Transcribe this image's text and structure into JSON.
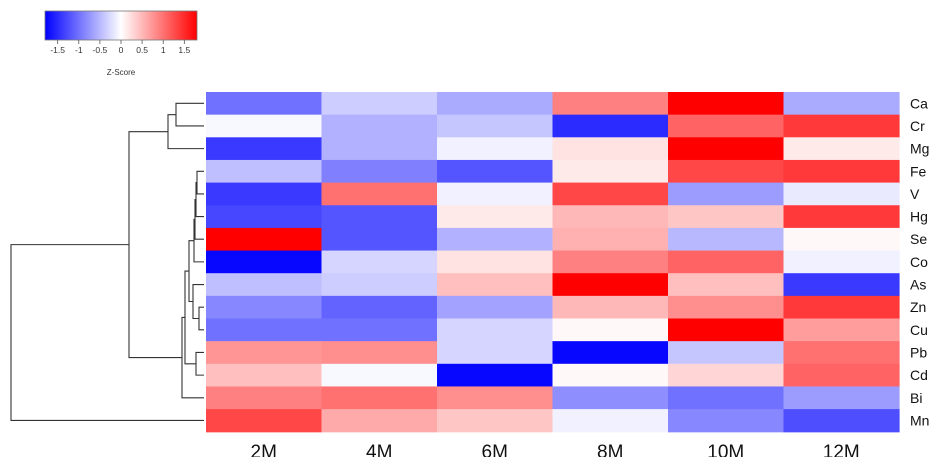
{
  "chart_data": {
    "type": "heatmap",
    "columns": [
      "2M",
      "4M",
      "6M",
      "8M",
      "10M",
      "12M"
    ],
    "rows": [
      "Ca",
      "Cr",
      "Mg",
      "Fe",
      "V",
      "Hg",
      "Se",
      "Co",
      "As",
      "Zn",
      "Cu",
      "Pb",
      "Cd",
      "Bi",
      "Mn"
    ],
    "values": [
      [
        -1.0,
        -0.35,
        -0.6,
        0.9,
        1.8,
        -0.6
      ],
      [
        -0.05,
        -0.55,
        -0.4,
        -1.5,
        1.1,
        1.4
      ],
      [
        -1.4,
        -0.55,
        -0.1,
        0.2,
        1.8,
        0.15
      ],
      [
        -0.45,
        -0.9,
        -1.2,
        0.15,
        1.3,
        1.4
      ],
      [
        -1.4,
        1.0,
        -0.1,
        1.3,
        -0.7,
        -0.15
      ],
      [
        -1.3,
        -1.2,
        0.15,
        0.5,
        0.4,
        1.4
      ],
      [
        1.8,
        -1.2,
        -0.55,
        0.55,
        -0.5,
        0.05
      ],
      [
        -1.75,
        -0.3,
        0.2,
        0.9,
        1.1,
        -0.1
      ],
      [
        -0.45,
        -0.35,
        0.45,
        1.8,
        0.45,
        -1.4
      ],
      [
        -0.85,
        -1.1,
        -0.65,
        0.5,
        0.8,
        1.4
      ],
      [
        -1.0,
        -1.0,
        -0.3,
        0.05,
        1.8,
        0.7
      ],
      [
        0.75,
        0.8,
        -0.3,
        -1.75,
        -0.4,
        1.0
      ],
      [
        0.45,
        -0.05,
        -1.75,
        0.05,
        0.3,
        1.1
      ],
      [
        0.9,
        1.0,
        0.8,
        -0.8,
        -1.0,
        -0.7
      ],
      [
        1.3,
        0.6,
        0.4,
        -0.1,
        -0.85,
        -1.25
      ]
    ],
    "color_scale": {
      "low": "#0000ff",
      "mid": "#ffffff",
      "high": "#ff0000",
      "range": [
        -1.8,
        1.8
      ],
      "ticks": [
        "-1.5",
        "-1",
        "-0.5",
        "0",
        "0.5",
        "1",
        "1.5"
      ],
      "title": "Z-Score"
    },
    "dendrogram": "rows",
    "legend_position": "top-left"
  }
}
